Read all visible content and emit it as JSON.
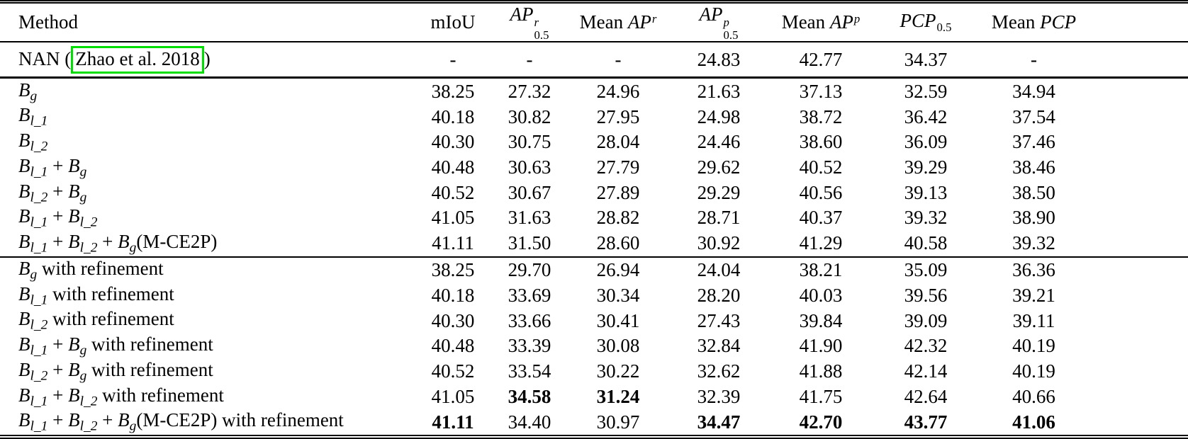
{
  "colors": {
    "citation_box_green": "#00dd00",
    "text": "#000000",
    "background": "#ffffff"
  },
  "table": {
    "header": {
      "method_label": "Method",
      "columns": [
        {
          "base": "mIoU",
          "italic": false
        },
        {
          "base": "AP",
          "italic": true,
          "sup": "r",
          "sub": "0.5"
        },
        {
          "prefix": "Mean ",
          "base": "AP",
          "italic": true,
          "sup": "r"
        },
        {
          "base": "AP",
          "italic": true,
          "sup": "p",
          "sub": "0.5"
        },
        {
          "prefix": "Mean ",
          "base": "AP",
          "italic": true,
          "sup": "p"
        },
        {
          "base": "PCP",
          "italic": true,
          "sub": "0.5"
        },
        {
          "prefix": "Mean ",
          "base": "PCP",
          "italic": true
        }
      ]
    },
    "sections": [
      {
        "name": "nan",
        "rows": [
          {
            "method": [
              {
                "t": "NAN ("
              },
              {
                "t": "Zhao et al. 2018",
                "box": true
              },
              {
                "t": ")"
              }
            ],
            "values": [
              "-",
              "-",
              "-",
              "24.83",
              "42.77",
              "34.37",
              "-"
            ],
            "bold": []
          }
        ]
      },
      {
        "name": "baselines",
        "rows": [
          {
            "method": [
              {
                "i": "B",
                "sub": "g"
              }
            ],
            "values": [
              "38.25",
              "27.32",
              "24.96",
              "21.63",
              "37.13",
              "32.59",
              "34.94"
            ],
            "bold": []
          },
          {
            "method": [
              {
                "i": "B",
                "sub": "l_1"
              }
            ],
            "values": [
              "40.18",
              "30.82",
              "27.95",
              "24.98",
              "38.72",
              "36.42",
              "37.54"
            ],
            "bold": []
          },
          {
            "method": [
              {
                "i": "B",
                "sub": "l_2"
              }
            ],
            "values": [
              "40.30",
              "30.75",
              "28.04",
              "24.46",
              "38.60",
              "36.09",
              "37.46"
            ],
            "bold": []
          },
          {
            "method": [
              {
                "i": "B",
                "sub": "l_1"
              },
              {
                "t": " + "
              },
              {
                "i": "B",
                "sub": "g"
              }
            ],
            "values": [
              "40.48",
              "30.63",
              "27.79",
              "29.62",
              "40.52",
              "39.29",
              "38.46"
            ],
            "bold": []
          },
          {
            "method": [
              {
                "i": "B",
                "sub": "l_2"
              },
              {
                "t": " + "
              },
              {
                "i": "B",
                "sub": "g"
              }
            ],
            "values": [
              "40.52",
              "30.67",
              "27.89",
              "29.29",
              "40.56",
              "39.13",
              "38.50"
            ],
            "bold": []
          },
          {
            "method": [
              {
                "i": "B",
                "sub": "l_1"
              },
              {
                "t": " + "
              },
              {
                "i": "B",
                "sub": "l_2"
              }
            ],
            "values": [
              "41.05",
              "31.63",
              "28.82",
              "28.71",
              "40.37",
              "39.32",
              "38.90"
            ],
            "bold": []
          },
          {
            "method": [
              {
                "i": "B",
                "sub": "l_1"
              },
              {
                "t": " + "
              },
              {
                "i": "B",
                "sub": "l_2"
              },
              {
                "t": " + "
              },
              {
                "i": "B",
                "sub": "g"
              },
              {
                "t": "(M-CE2P)"
              }
            ],
            "values": [
              "41.11",
              "31.50",
              "28.60",
              "30.92",
              "41.29",
              "40.58",
              "39.32"
            ],
            "bold": []
          }
        ]
      },
      {
        "name": "refinement",
        "rows": [
          {
            "method": [
              {
                "i": "B",
                "sub": "g"
              },
              {
                "t": " with refinement"
              }
            ],
            "values": [
              "38.25",
              "29.70",
              "26.94",
              "24.04",
              "38.21",
              "35.09",
              "36.36"
            ],
            "bold": []
          },
          {
            "method": [
              {
                "i": "B",
                "sub": "l_1"
              },
              {
                "t": " with refinement"
              }
            ],
            "values": [
              "40.18",
              "33.69",
              "30.34",
              "28.20",
              "40.03",
              "39.56",
              "39.21"
            ],
            "bold": []
          },
          {
            "method": [
              {
                "i": "B",
                "sub": "l_2"
              },
              {
                "t": " with refinement"
              }
            ],
            "values": [
              "40.30",
              "33.66",
              "30.41",
              "27.43",
              "39.84",
              "39.09",
              "39.11"
            ],
            "bold": []
          },
          {
            "method": [
              {
                "i": "B",
                "sub": "l_1"
              },
              {
                "t": " + "
              },
              {
                "i": "B",
                "sub": "g"
              },
              {
                "t": " with refinement"
              }
            ],
            "values": [
              "40.48",
              "33.39",
              "30.08",
              "32.84",
              "41.90",
              "42.32",
              "40.19"
            ],
            "bold": []
          },
          {
            "method": [
              {
                "i": "B",
                "sub": "l_2"
              },
              {
                "t": " + "
              },
              {
                "i": "B",
                "sub": "g"
              },
              {
                "t": " with refinement"
              }
            ],
            "values": [
              "40.52",
              "33.54",
              "30.22",
              "32.62",
              "41.88",
              "42.14",
              "40.19"
            ],
            "bold": []
          },
          {
            "method": [
              {
                "i": "B",
                "sub": "l_1"
              },
              {
                "t": " + "
              },
              {
                "i": "B",
                "sub": "l_2"
              },
              {
                "t": " with refinement"
              }
            ],
            "values": [
              "41.05",
              "34.58",
              "31.24",
              "32.39",
              "41.75",
              "42.64",
              "40.66"
            ],
            "bold": [
              1,
              2
            ]
          },
          {
            "method": [
              {
                "i": "B",
                "sub": "l_1"
              },
              {
                "t": " + "
              },
              {
                "i": "B",
                "sub": "l_2"
              },
              {
                "t": " + "
              },
              {
                "i": "B",
                "sub": "g"
              },
              {
                "t": "(M-CE2P) with refinement"
              }
            ],
            "values": [
              "41.11",
              "34.40",
              "30.97",
              "34.47",
              "42.70",
              "43.77",
              "41.06"
            ],
            "bold": [
              0,
              3,
              4,
              5,
              6
            ]
          }
        ]
      }
    ]
  }
}
